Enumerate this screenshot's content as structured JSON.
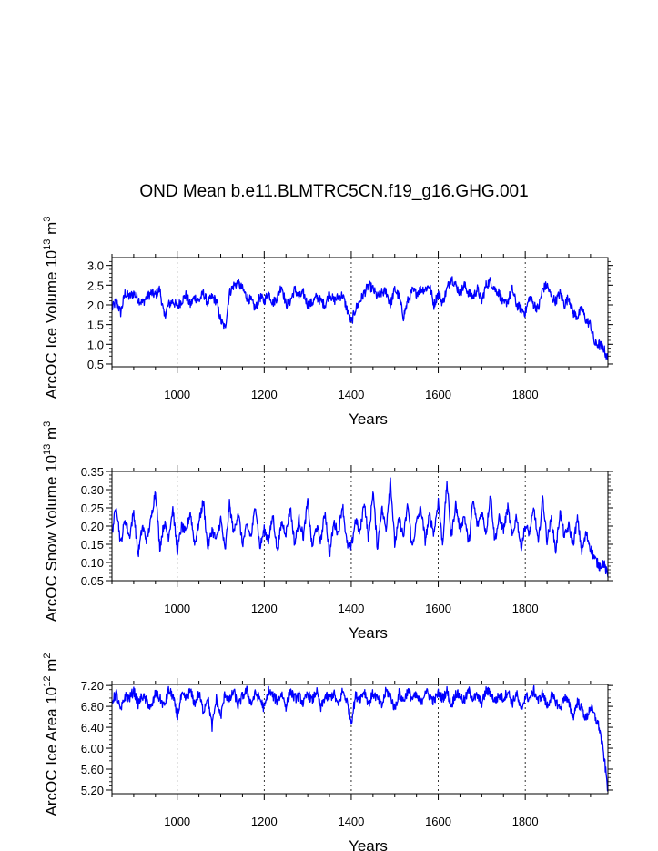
{
  "figure": {
    "title": "OND Mean b.e11.BLMTRC5CN.f19_g16.GHG.001"
  },
  "chart_data": [
    {
      "type": "line",
      "title": "OND Mean b.e11.BLMTRC5CN.f19_g16.GHG.001",
      "xlabel": "Years",
      "ylabel": "ArcOC Ice Volume 10^13 m^3",
      "ylabel_parts": {
        "main": "ArcOC Ice Volume 10",
        "exp1": "13",
        "unit": " m",
        "exp2": "3"
      },
      "xlim": [
        850,
        1990
      ],
      "ylim": [
        0.43,
        3.2
      ],
      "x_ticks": [
        1000,
        1200,
        1400,
        1600,
        1800
      ],
      "y_ticks": [
        0.5,
        1.0,
        1.5,
        2.0,
        2.5,
        3.0
      ],
      "y_tick_labels": [
        "0.5",
        "1.0",
        "1.5",
        "2.0",
        "2.5",
        "3.0"
      ],
      "grid": "vertical-dashed",
      "line_color": "#0000ff",
      "series": [
        {
          "x": [
            850,
            860,
            870,
            880,
            890,
            900,
            910,
            920,
            930,
            940,
            950,
            960,
            970,
            980,
            990,
            1000,
            1010,
            1020,
            1030,
            1040,
            1050,
            1060,
            1070,
            1080,
            1090,
            1100,
            1110,
            1120,
            1130,
            1140,
            1150,
            1160,
            1170,
            1180,
            1190,
            1200,
            1210,
            1220,
            1230,
            1240,
            1250,
            1260,
            1270,
            1280,
            1290,
            1300,
            1310,
            1320,
            1330,
            1340,
            1350,
            1360,
            1370,
            1380,
            1390,
            1400,
            1410,
            1420,
            1430,
            1440,
            1450,
            1460,
            1470,
            1480,
            1490,
            1500,
            1510,
            1520,
            1530,
            1540,
            1550,
            1560,
            1570,
            1580,
            1590,
            1600,
            1610,
            1620,
            1630,
            1640,
            1650,
            1660,
            1670,
            1680,
            1690,
            1700,
            1710,
            1720,
            1730,
            1740,
            1750,
            1760,
            1770,
            1780,
            1790,
            1800,
            1810,
            1820,
            1830,
            1840,
            1850,
            1860,
            1870,
            1880,
            1890,
            1900,
            1910,
            1920,
            1930,
            1940,
            1950,
            1960,
            1970,
            1980,
            1990
          ],
          "y": [
            1.9,
            2.1,
            1.8,
            2.3,
            2.2,
            2.3,
            2.15,
            2.05,
            2.2,
            2.3,
            2.25,
            2.4,
            1.7,
            2.0,
            2.1,
            1.95,
            2.1,
            2.25,
            2.0,
            2.2,
            2.1,
            2.3,
            2.05,
            2.2,
            2.1,
            1.6,
            1.4,
            2.3,
            2.5,
            2.55,
            2.4,
            2.2,
            2.1,
            1.9,
            2.2,
            2.1,
            2.3,
            2.05,
            2.2,
            2.5,
            2.0,
            2.1,
            2.4,
            2.2,
            2.3,
            2.0,
            2.05,
            2.2,
            2.1,
            2.0,
            2.3,
            2.1,
            2.2,
            2.25,
            1.9,
            1.55,
            1.9,
            2.1,
            2.3,
            2.5,
            2.4,
            2.2,
            2.3,
            2.35,
            2.0,
            2.4,
            2.2,
            1.7,
            2.1,
            2.35,
            2.3,
            2.4,
            2.4,
            2.5,
            2.0,
            2.3,
            2.05,
            2.4,
            2.7,
            2.5,
            2.3,
            2.5,
            2.3,
            2.2,
            2.4,
            2.1,
            2.5,
            2.6,
            2.4,
            2.3,
            2.0,
            2.1,
            2.4,
            2.0,
            1.9,
            1.8,
            2.2,
            2.0,
            1.9,
            2.4,
            2.5,
            2.2,
            2.1,
            2.3,
            2.0,
            2.2,
            1.8,
            1.7,
            1.9,
            1.6,
            1.5,
            1.0,
            1.0,
            0.9,
            0.6
          ]
        }
      ]
    },
    {
      "type": "line",
      "xlabel": "Years",
      "ylabel": "ArcOC Snow Volume 10^13 m^3",
      "ylabel_parts": {
        "main": "ArcOC Snow Volume 10",
        "exp1": "13",
        "unit": " m",
        "exp2": "3"
      },
      "xlim": [
        850,
        1990
      ],
      "ylim": [
        0.05,
        0.35
      ],
      "x_ticks": [
        1000,
        1200,
        1400,
        1600,
        1800
      ],
      "y_ticks": [
        0.05,
        0.1,
        0.15,
        0.2,
        0.25,
        0.3,
        0.35
      ],
      "y_tick_labels": [
        "0.05",
        "0.10",
        "0.15",
        "0.20",
        "0.25",
        "0.30",
        "0.35"
      ],
      "grid": "vertical-dashed",
      "line_color": "#0000ff",
      "series": [
        {
          "x": [
            850,
            860,
            870,
            880,
            890,
            900,
            910,
            920,
            930,
            940,
            950,
            960,
            970,
            980,
            990,
            1000,
            1010,
            1020,
            1030,
            1040,
            1050,
            1060,
            1070,
            1080,
            1090,
            1100,
            1110,
            1120,
            1130,
            1140,
            1150,
            1160,
            1170,
            1180,
            1190,
            1200,
            1210,
            1220,
            1230,
            1240,
            1250,
            1260,
            1270,
            1280,
            1290,
            1300,
            1310,
            1320,
            1330,
            1340,
            1350,
            1360,
            1370,
            1380,
            1390,
            1400,
            1410,
            1420,
            1430,
            1440,
            1450,
            1460,
            1470,
            1480,
            1490,
            1500,
            1510,
            1520,
            1530,
            1540,
            1550,
            1560,
            1570,
            1580,
            1590,
            1600,
            1610,
            1620,
            1630,
            1640,
            1650,
            1660,
            1670,
            1680,
            1690,
            1700,
            1710,
            1720,
            1730,
            1740,
            1750,
            1760,
            1770,
            1780,
            1790,
            1800,
            1810,
            1820,
            1830,
            1840,
            1850,
            1860,
            1870,
            1880,
            1890,
            1900,
            1910,
            1920,
            1930,
            1940,
            1950,
            1960,
            1970,
            1980,
            1990
          ],
          "y": [
            0.18,
            0.26,
            0.15,
            0.22,
            0.17,
            0.24,
            0.12,
            0.2,
            0.16,
            0.22,
            0.3,
            0.14,
            0.21,
            0.17,
            0.25,
            0.13,
            0.2,
            0.18,
            0.24,
            0.15,
            0.21,
            0.27,
            0.14,
            0.19,
            0.16,
            0.22,
            0.13,
            0.26,
            0.18,
            0.24,
            0.15,
            0.2,
            0.17,
            0.26,
            0.14,
            0.19,
            0.16,
            0.23,
            0.13,
            0.21,
            0.18,
            0.25,
            0.15,
            0.22,
            0.17,
            0.27,
            0.14,
            0.2,
            0.16,
            0.24,
            0.12,
            0.21,
            0.18,
            0.26,
            0.15,
            0.14,
            0.22,
            0.18,
            0.27,
            0.16,
            0.3,
            0.14,
            0.25,
            0.19,
            0.33,
            0.15,
            0.22,
            0.17,
            0.26,
            0.14,
            0.21,
            0.25,
            0.16,
            0.23,
            0.18,
            0.27,
            0.15,
            0.32,
            0.17,
            0.26,
            0.19,
            0.23,
            0.15,
            0.27,
            0.2,
            0.24,
            0.18,
            0.29,
            0.16,
            0.22,
            0.19,
            0.25,
            0.17,
            0.23,
            0.14,
            0.2,
            0.18,
            0.25,
            0.15,
            0.28,
            0.16,
            0.22,
            0.13,
            0.24,
            0.17,
            0.2,
            0.15,
            0.22,
            0.13,
            0.18,
            0.14,
            0.11,
            0.09,
            0.1,
            0.06
          ]
        }
      ]
    },
    {
      "type": "line",
      "xlabel": "Years",
      "ylabel": "ArcOC Ice Area 10^12 m^2",
      "ylabel_parts": {
        "main": "ArcOC Ice Area 10",
        "exp1": "12",
        "unit": " m",
        "exp2": "2"
      },
      "xlim": [
        850,
        1990
      ],
      "ylim": [
        5.13,
        7.22
      ],
      "x_ticks": [
        1000,
        1200,
        1400,
        1600,
        1800
      ],
      "y_ticks": [
        5.2,
        5.6,
        6.0,
        6.4,
        6.8,
        7.2
      ],
      "y_tick_labels": [
        "5.20",
        "5.60",
        "6.00",
        "6.40",
        "6.80",
        "7.20"
      ],
      "grid": "vertical-dashed",
      "line_color": "#0000ff",
      "series": [
        {
          "x": [
            850,
            860,
            870,
            880,
            890,
            900,
            910,
            920,
            930,
            940,
            950,
            960,
            970,
            980,
            990,
            1000,
            1010,
            1020,
            1030,
            1040,
            1050,
            1060,
            1070,
            1080,
            1090,
            1100,
            1110,
            1120,
            1130,
            1140,
            1150,
            1160,
            1170,
            1180,
            1190,
            1200,
            1210,
            1220,
            1230,
            1240,
            1250,
            1260,
            1270,
            1280,
            1290,
            1300,
            1310,
            1320,
            1330,
            1340,
            1350,
            1360,
            1370,
            1380,
            1390,
            1400,
            1410,
            1420,
            1430,
            1440,
            1450,
            1460,
            1470,
            1480,
            1490,
            1500,
            1510,
            1520,
            1530,
            1540,
            1550,
            1560,
            1570,
            1580,
            1590,
            1600,
            1610,
            1620,
            1630,
            1640,
            1650,
            1660,
            1670,
            1680,
            1690,
            1700,
            1710,
            1720,
            1730,
            1740,
            1750,
            1760,
            1770,
            1780,
            1790,
            1800,
            1810,
            1820,
            1830,
            1840,
            1850,
            1860,
            1870,
            1880,
            1890,
            1900,
            1910,
            1920,
            1930,
            1940,
            1950,
            1960,
            1970,
            1980,
            1990
          ],
          "y": [
            6.9,
            7.05,
            6.7,
            7.0,
            6.95,
            7.1,
            6.85,
            7.0,
            6.9,
            6.75,
            7.05,
            6.95,
            6.8,
            7.1,
            7.0,
            6.6,
            7.0,
            6.95,
            7.1,
            6.85,
            7.05,
            6.7,
            7.0,
            6.4,
            6.95,
            6.6,
            7.05,
            6.9,
            7.1,
            6.8,
            7.0,
            7.1,
            6.85,
            7.05,
            6.95,
            6.75,
            7.1,
            7.0,
            6.9,
            7.05,
            6.8,
            7.1,
            6.95,
            7.0,
            6.85,
            7.05,
            6.9,
            7.1,
            6.75,
            7.0,
            6.95,
            7.05,
            6.8,
            7.1,
            6.9,
            6.5,
            7.0,
            6.95,
            7.1,
            6.85,
            7.05,
            6.95,
            6.8,
            7.1,
            7.0,
            6.75,
            7.05,
            6.9,
            7.1,
            6.95,
            7.0,
            6.85,
            7.1,
            7.0,
            6.9,
            7.05,
            6.95,
            7.1,
            6.8,
            7.05,
            7.0,
            6.9,
            7.1,
            6.95,
            7.0,
            6.85,
            7.1,
            7.05,
            6.9,
            7.0,
            6.95,
            7.1,
            6.85,
            7.05,
            6.7,
            7.0,
            6.95,
            7.1,
            6.9,
            7.05,
            6.8,
            7.0,
            6.9,
            6.75,
            7.0,
            6.85,
            6.6,
            6.9,
            6.75,
            6.55,
            6.8,
            6.6,
            6.4,
            5.9,
            5.2
          ]
        }
      ]
    }
  ]
}
